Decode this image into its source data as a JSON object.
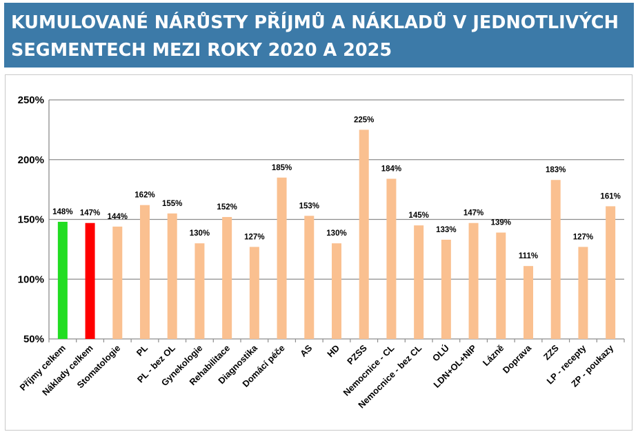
{
  "title": {
    "line1": "KUMULOVANÉ NÁRŮSTY PŘÍJMŮ A NÁKLADŮ V JEDNOTLIVÝCH",
    "line2": "SEGMENTECH MEZI ROKY 2020 A 2025"
  },
  "chart_data": {
    "type": "bar",
    "categories": [
      "Příjmy celkem",
      "Náklady celkem",
      "Stomatologie",
      "PL",
      "PL - bez OL",
      "Gynekologie",
      "Rehabilitace",
      "Diagnostika",
      "Domácí péče",
      "AS",
      "HD",
      "PZSS",
      "Nemocnice - CL",
      "Nemocnice - bez CL",
      "OLÚ",
      "LDN+OL+NIP",
      "Lázně",
      "Doprava",
      "ZZS",
      "LP - recepty",
      "ZP - poukazy"
    ],
    "values": [
      148,
      147,
      144,
      162,
      155,
      130,
      152,
      127,
      185,
      153,
      130,
      225,
      184,
      145,
      133,
      147,
      139,
      111,
      183,
      127,
      161
    ],
    "data_labels": [
      "148%",
      "147%",
      "144%",
      "162%",
      "155%",
      "130%",
      "152%",
      "127%",
      "185%",
      "153%",
      "130%",
      "225%",
      "184%",
      "145%",
      "133%",
      "147%",
      "139%",
      "111%",
      "183%",
      "127%",
      "161%"
    ],
    "bar_colors": [
      "#22dd22",
      "#ff0000",
      "#fac090",
      "#fac090",
      "#fac090",
      "#fac090",
      "#fac090",
      "#fac090",
      "#fac090",
      "#fac090",
      "#fac090",
      "#fac090",
      "#fac090",
      "#fac090",
      "#fac090",
      "#fac090",
      "#fac090",
      "#fac090",
      "#fac090",
      "#fac090",
      "#fac090"
    ],
    "y_unit": "%",
    "ylim": [
      50,
      250
    ],
    "yticks": [
      50,
      100,
      150,
      200,
      250
    ],
    "ytick_labels": [
      "50%",
      "100%",
      "150%",
      "200%",
      "250%"
    ],
    "grid": true,
    "gridline_color": "#8c8c8c",
    "xlabel": "",
    "ylabel": "",
    "legend": "none"
  }
}
